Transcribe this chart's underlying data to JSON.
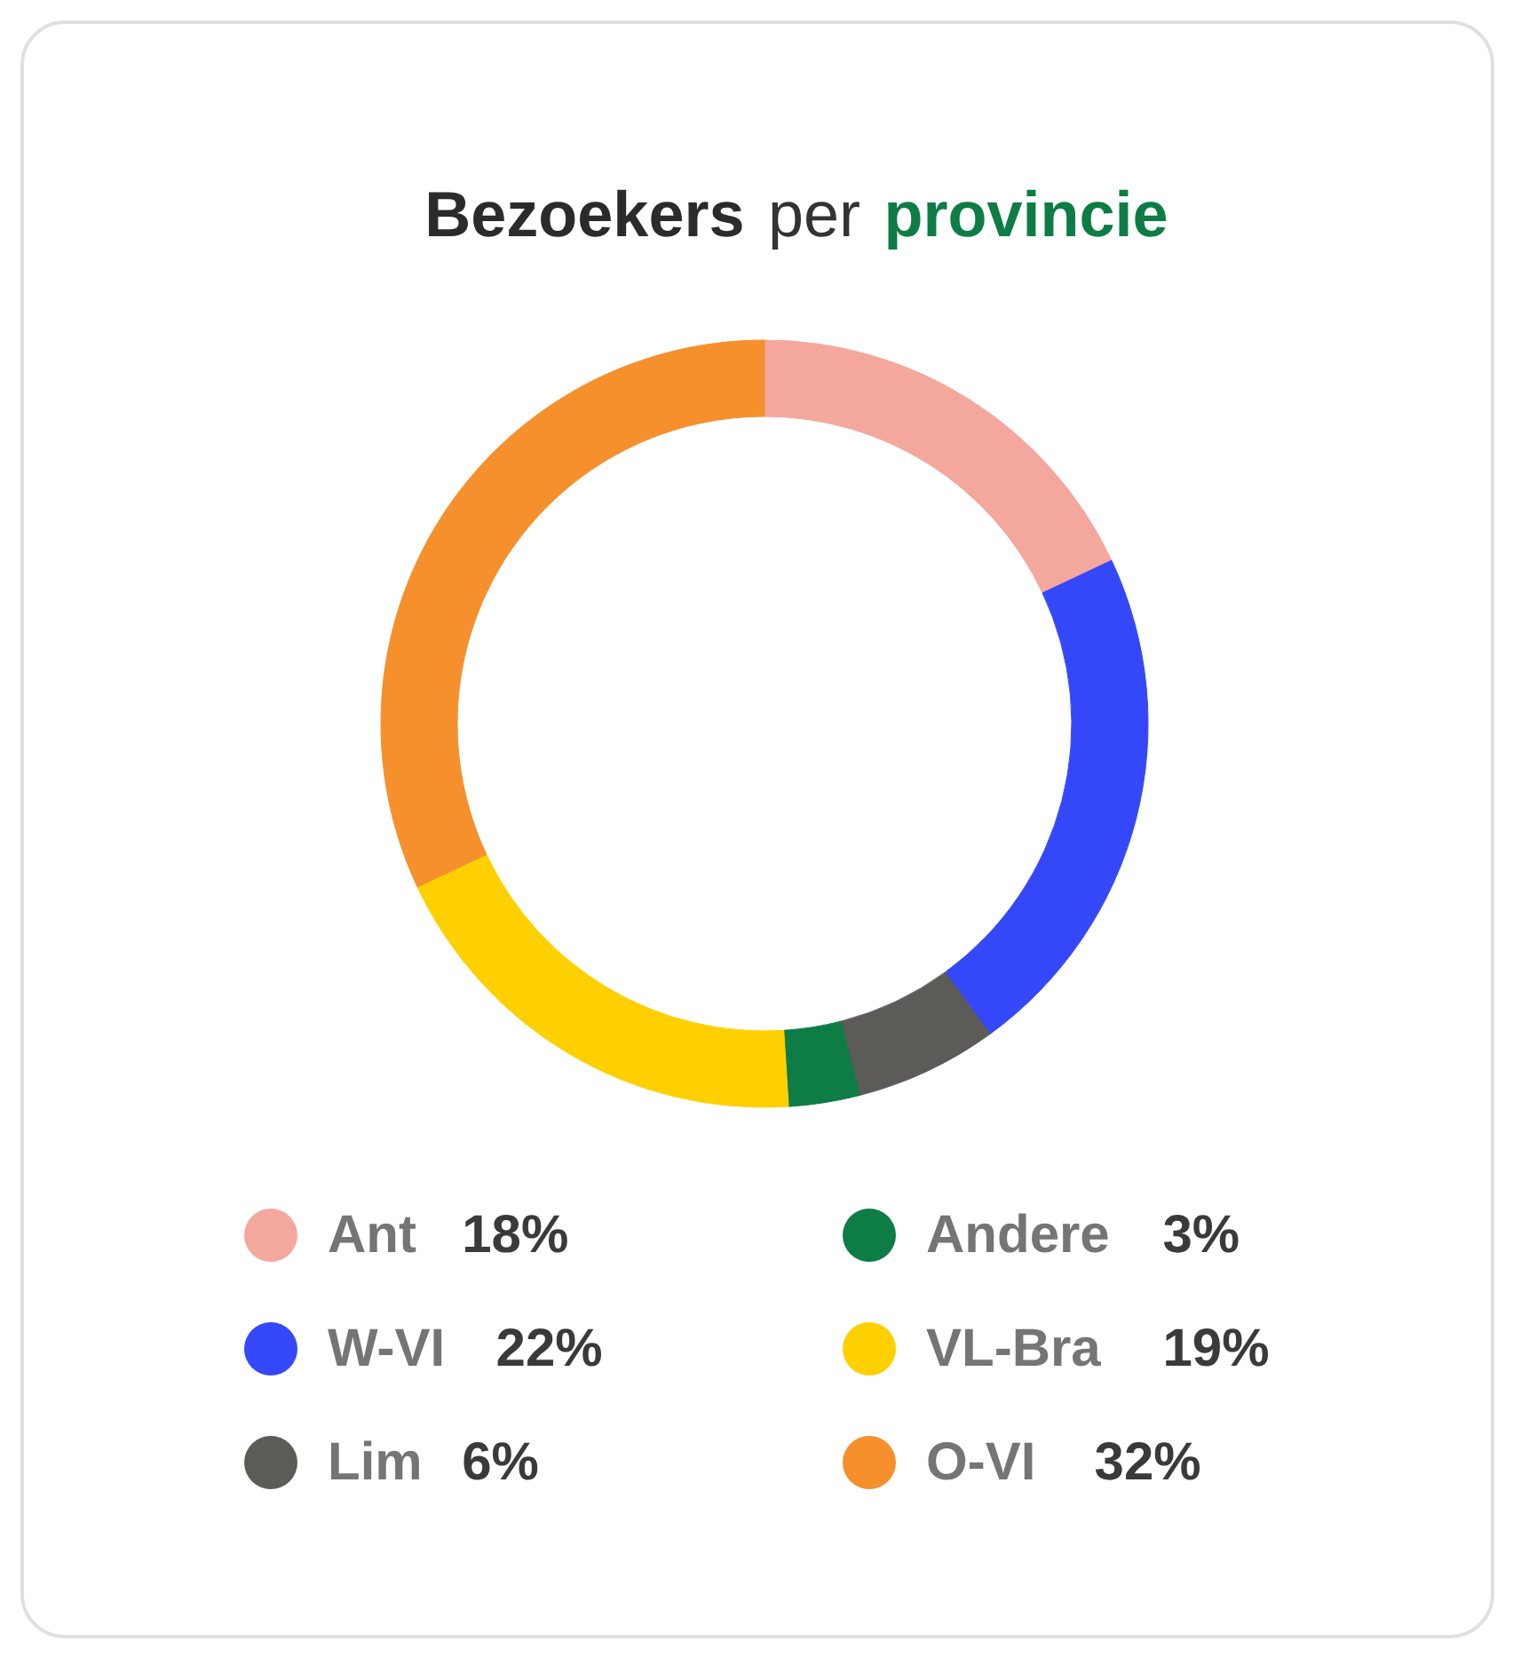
{
  "chart_data": {
    "type": "donut",
    "title": "Bezoekers per provincie",
    "categories": [
      "Ant",
      "W-VI",
      "Lim",
      "Andere",
      "VL-Bra",
      "O-VI"
    ],
    "values": [
      18,
      22,
      6,
      3,
      19,
      32
    ],
    "value_labels": [
      "18%",
      "22%",
      "6%",
      "3%",
      "19%",
      "32%"
    ],
    "colors": [
      "#f4a89d",
      "#3448fa",
      "#5c5b57",
      "#0e7c45",
      "#ffd000",
      "#f5902c"
    ],
    "legend": "bottom"
  }
}
